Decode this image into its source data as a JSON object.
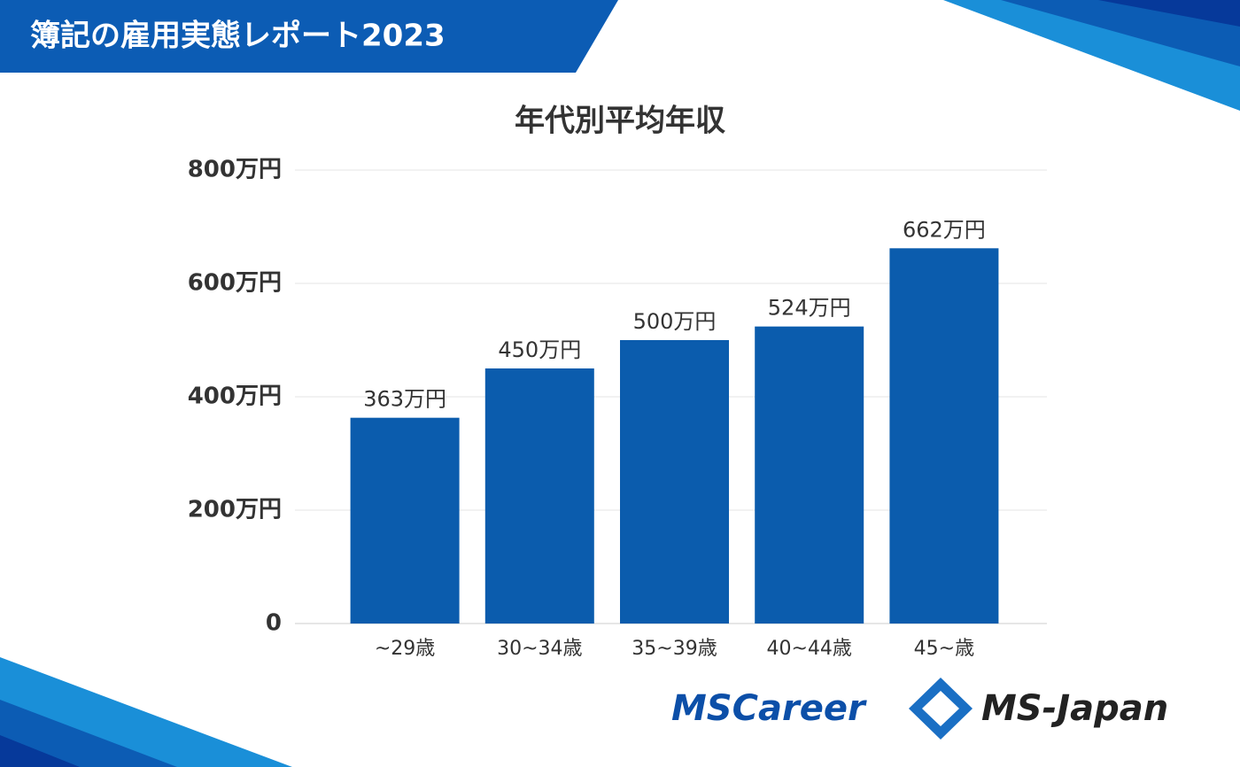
{
  "header": {
    "title": "簿記の雇用実態レポート2023"
  },
  "logos": {
    "left": "MSCareer",
    "right": "MS-Japan"
  },
  "chart_data": {
    "type": "bar",
    "title": "年代別平均年収",
    "categories": [
      "~29歳",
      "30~34歳",
      "35~39歳",
      "40~44歳",
      "45~歳"
    ],
    "values": [
      363,
      450,
      500,
      524,
      662
    ],
    "value_labels": [
      "363万円",
      "450万円",
      "500万円",
      "524万円",
      "662万円"
    ],
    "color": "#0b5cad",
    "ylim": [
      0,
      800
    ],
    "yticks": [
      0,
      {
        "value": 200,
        "label": "200万円"
      },
      {
        "value": 400,
        "label": "400万円"
      },
      {
        "value": 600,
        "label": "600万円"
      },
      {
        "value": 800,
        "label": "800万円"
      }
    ],
    "grid": true
  }
}
